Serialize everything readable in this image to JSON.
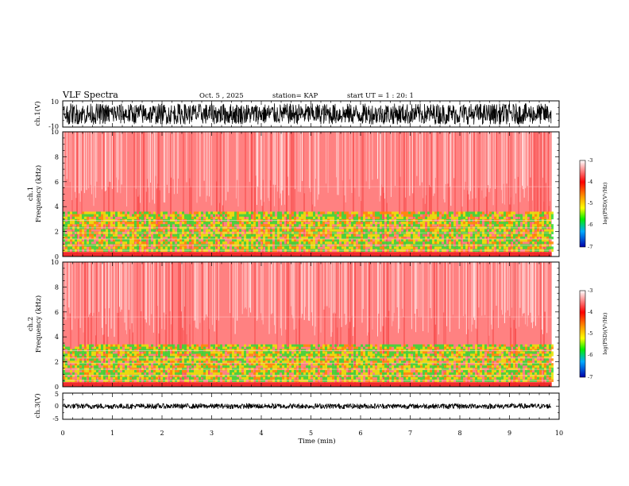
{
  "header": {
    "title": "VLF Spectra",
    "date": "Oct. 5 , 2025",
    "station": "station= KAP",
    "start": "start UT =  1 : 20: 1"
  },
  "chart_data": {
    "type": "heatmap",
    "title": "VLF Spectra",
    "xlabel": "Time (min)",
    "xlim": [
      0,
      10
    ],
    "x_ticks": [
      "0",
      "1",
      "2",
      "3",
      "4",
      "5",
      "6",
      "7",
      "8",
      "9",
      "10"
    ],
    "data_end_min": 9.85,
    "panels": [
      {
        "name": "ch.1(V)",
        "kind": "waveform",
        "ylabel": "ch.1(V)",
        "ylim": [
          -10,
          10
        ],
        "y_ticks": [
          "10",
          "-10"
        ],
        "amplitude_range": [
          -8,
          8
        ]
      },
      {
        "name": "ch.1 spectrogram",
        "kind": "spectrogram",
        "ylabel_line1": "ch.1",
        "ylabel_line2": "Frequency (kHz)",
        "ylim": [
          0,
          10
        ],
        "y_ticks": [
          "0",
          "2",
          "4",
          "6",
          "8",
          "10"
        ],
        "low_power_band_khz": [
          0.4,
          3.6
        ],
        "colorbar": {
          "label": "log(PSD)(V²/Hz)",
          "range": [
            -7,
            -3
          ],
          "ticks": [
            "-3",
            "-4",
            "-5",
            "-6",
            "-7"
          ]
        }
      },
      {
        "name": "ch.2 spectrogram",
        "kind": "spectrogram",
        "ylabel_line1": "ch.2",
        "ylabel_line2": "Frequency (kHz)",
        "ylim": [
          0,
          10
        ],
        "y_ticks": [
          "0",
          "2",
          "4",
          "6",
          "8",
          "10"
        ],
        "low_power_band_khz": [
          0.4,
          3.4
        ],
        "colorbar": {
          "label": "log(PSD)(V²/Hz)",
          "range": [
            -7,
            -3
          ],
          "ticks": [
            "-3",
            "-4",
            "-5",
            "-6",
            "-7"
          ]
        }
      },
      {
        "name": "ch.3(V)",
        "kind": "waveform",
        "ylabel": "ch.3(V)",
        "ylim": [
          -5,
          5
        ],
        "y_ticks": [
          "5",
          "0",
          "-5"
        ],
        "amplitude_range": [
          -1,
          1
        ]
      }
    ]
  },
  "colors": {
    "red": "#ff1a1a",
    "orange": "#ff8c00",
    "yellow": "#e6e600",
    "green": "#33dd33",
    "trace": "#000000"
  }
}
